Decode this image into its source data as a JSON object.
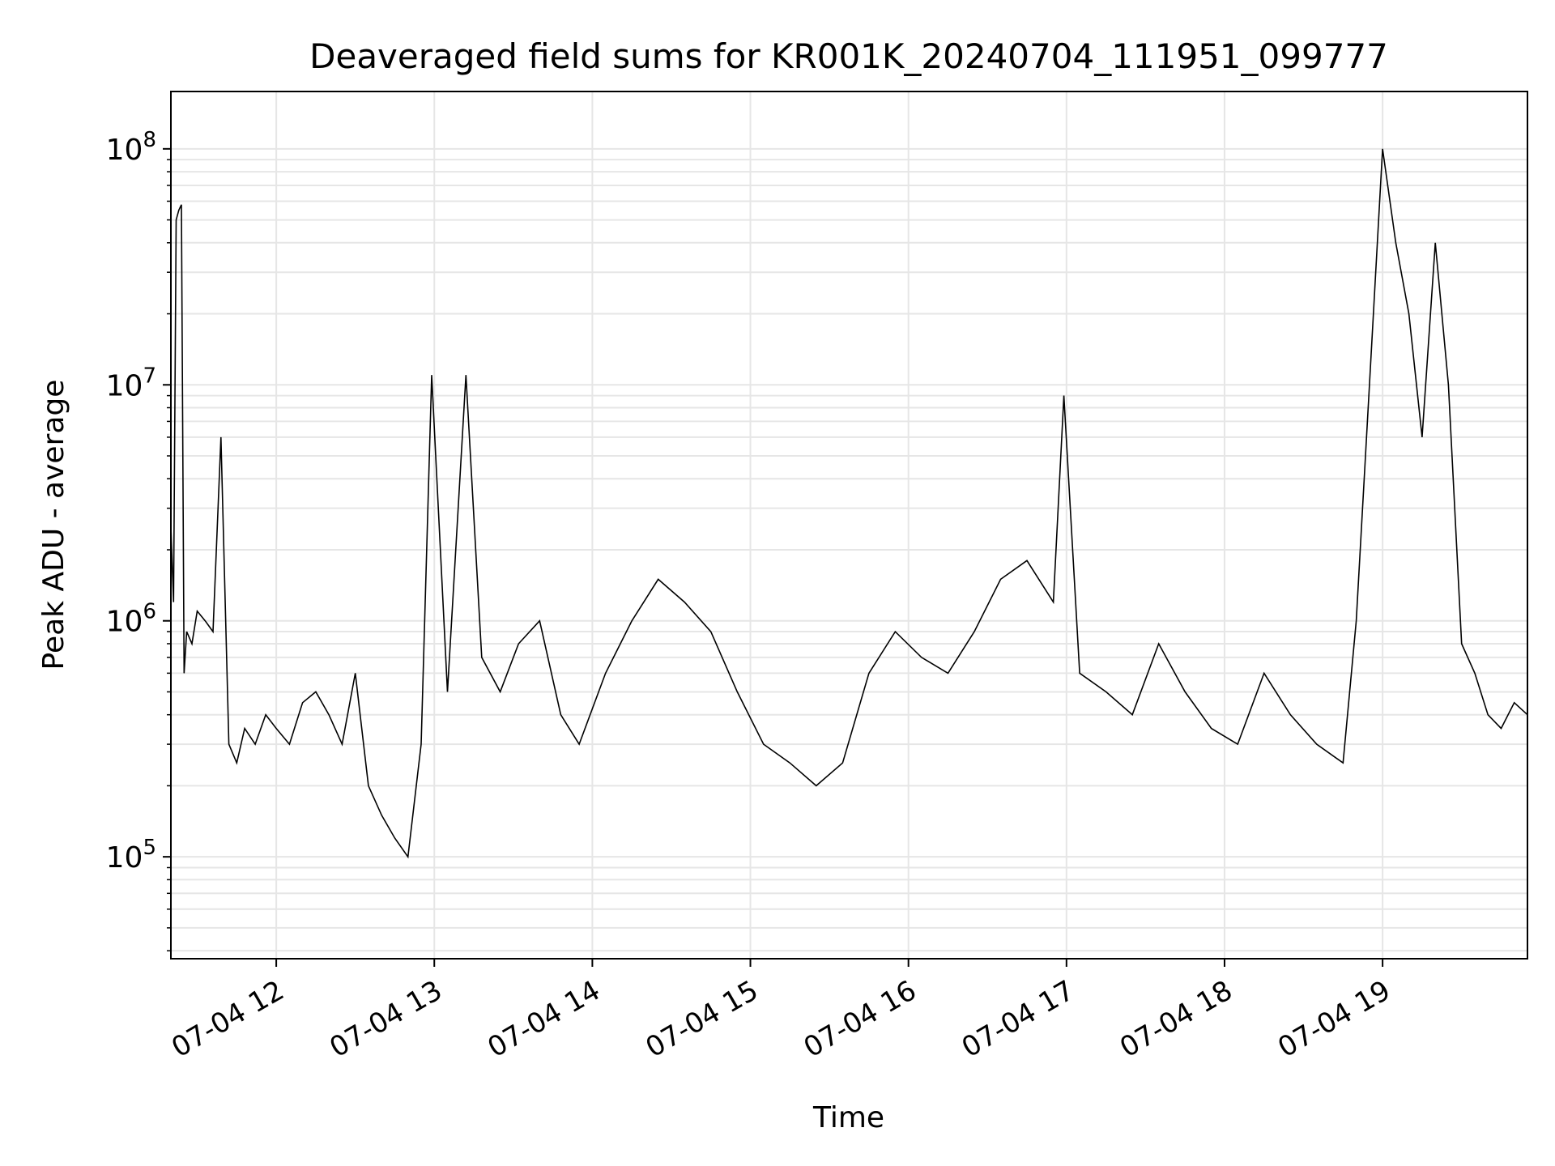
{
  "chart_data": {
    "type": "line",
    "title": "Deaveraged field sums for KR001K_20240704_111951_099777",
    "xlabel": "Time",
    "ylabel": "Peak ADU - average",
    "x_type": "time",
    "xlim": [
      "2024-07-04 11:20",
      "2024-07-04 19:55"
    ],
    "ylim": [
      37000,
      175000000
    ],
    "yscale": "log",
    "grid": true,
    "legend": "none",
    "x_ticks": [
      {
        "value": "2024-07-04 12:00",
        "label": "07-04 12"
      },
      {
        "value": "2024-07-04 13:00",
        "label": "07-04 13"
      },
      {
        "value": "2024-07-04 14:00",
        "label": "07-04 14"
      },
      {
        "value": "2024-07-04 15:00",
        "label": "07-04 15"
      },
      {
        "value": "2024-07-04 16:00",
        "label": "07-04 16"
      },
      {
        "value": "2024-07-04 17:00",
        "label": "07-04 17"
      },
      {
        "value": "2024-07-04 18:00",
        "label": "07-04 18"
      },
      {
        "value": "2024-07-04 19:00",
        "label": "07-04 19"
      }
    ],
    "y_ticks": [
      {
        "value": 100000,
        "base": "10",
        "exp": "5"
      },
      {
        "value": 1000000,
        "base": "10",
        "exp": "6"
      },
      {
        "value": 10000000,
        "base": "10",
        "exp": "7"
      },
      {
        "value": 100000000,
        "base": "10",
        "exp": "8"
      }
    ],
    "line_color": "#000000",
    "grid_color": "#e6e6e6",
    "series": [
      {
        "x": [
          "2024-07-04 11:20",
          "2024-07-04 11:21",
          "2024-07-04 11:22",
          "2024-07-04 11:23",
          "2024-07-04 11:24",
          "2024-07-04 11:25",
          "2024-07-04 11:26",
          "2024-07-04 11:28",
          "2024-07-04 11:30",
          "2024-07-04 11:33",
          "2024-07-04 11:36",
          "2024-07-04 11:39",
          "2024-07-04 11:42",
          "2024-07-04 11:45",
          "2024-07-04 11:48",
          "2024-07-04 11:52",
          "2024-07-04 11:56",
          "2024-07-04 12:00",
          "2024-07-04 12:05",
          "2024-07-04 12:10",
          "2024-07-04 12:15",
          "2024-07-04 12:20",
          "2024-07-04 12:25",
          "2024-07-04 12:30",
          "2024-07-04 12:35",
          "2024-07-04 12:40",
          "2024-07-04 12:45",
          "2024-07-04 12:50",
          "2024-07-04 12:55",
          "2024-07-04 12:59",
          "2024-07-04 13:05",
          "2024-07-04 13:12",
          "2024-07-04 13:18",
          "2024-07-04 13:25",
          "2024-07-04 13:32",
          "2024-07-04 13:40",
          "2024-07-04 13:48",
          "2024-07-04 13:55",
          "2024-07-04 14:05",
          "2024-07-04 14:15",
          "2024-07-04 14:25",
          "2024-07-04 14:35",
          "2024-07-04 14:45",
          "2024-07-04 14:55",
          "2024-07-04 15:05",
          "2024-07-04 15:15",
          "2024-07-04 15:25",
          "2024-07-04 15:35",
          "2024-07-04 15:45",
          "2024-07-04 15:55",
          "2024-07-04 16:05",
          "2024-07-04 16:15",
          "2024-07-04 16:25",
          "2024-07-04 16:35",
          "2024-07-04 16:45",
          "2024-07-04 16:55",
          "2024-07-04 16:59",
          "2024-07-04 17:05",
          "2024-07-04 17:15",
          "2024-07-04 17:25",
          "2024-07-04 17:35",
          "2024-07-04 17:45",
          "2024-07-04 17:55",
          "2024-07-04 18:05",
          "2024-07-04 18:15",
          "2024-07-04 18:25",
          "2024-07-04 18:35",
          "2024-07-04 18:45",
          "2024-07-04 18:50",
          "2024-07-04 18:55",
          "2024-07-04 19:00",
          "2024-07-04 19:05",
          "2024-07-04 19:10",
          "2024-07-04 19:15",
          "2024-07-04 19:20",
          "2024-07-04 19:25",
          "2024-07-04 19:30",
          "2024-07-04 19:35",
          "2024-07-04 19:40",
          "2024-07-04 19:45",
          "2024-07-04 19:50",
          "2024-07-04 19:55"
        ],
        "y": [
          2500000,
          1200000,
          50000000,
          55000000,
          58000000,
          600000,
          900000,
          800000,
          1100000,
          1000000,
          900000,
          6000000,
          300000,
          250000,
          350000,
          300000,
          400000,
          350000,
          300000,
          450000,
          500000,
          400000,
          300000,
          600000,
          200000,
          150000,
          120000,
          100000,
          300000,
          11000000,
          500000,
          11000000,
          700000,
          500000,
          800000,
          1000000,
          400000,
          300000,
          600000,
          1000000,
          1500000,
          1200000,
          900000,
          500000,
          300000,
          250000,
          200000,
          250000,
          600000,
          900000,
          700000,
          600000,
          900000,
          1500000,
          1800000,
          1200000,
          9000000,
          600000,
          500000,
          400000,
          800000,
          500000,
          350000,
          300000,
          600000,
          400000,
          300000,
          250000,
          1000000,
          10000000,
          100000000,
          40000000,
          20000000,
          6000000,
          40000000,
          10000000,
          800000,
          600000,
          400000,
          350000,
          450000,
          400000
        ]
      }
    ]
  }
}
